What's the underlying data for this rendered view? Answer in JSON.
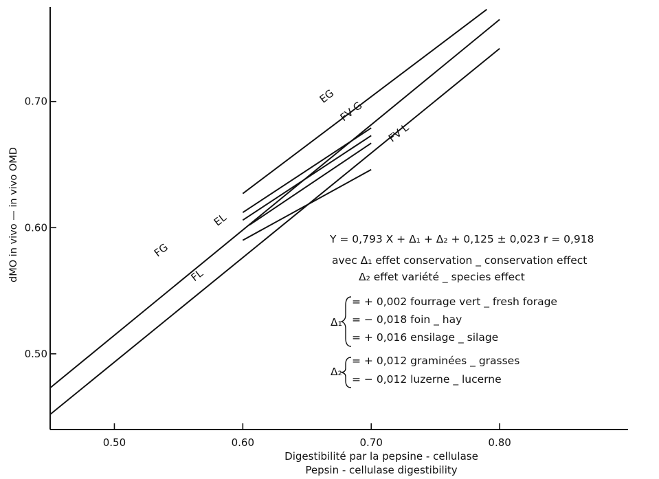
{
  "chart_data": {
    "type": "line",
    "xlabel": [
      "Digestibilité  par  la  pepsine - cellulase",
      "Pepsin - cellulase  digestibility"
    ],
    "ylabel": "dMO  in  vivo  —  in  vivo  OMD",
    "xlim": [
      0.45,
      0.9
    ],
    "ylim": [
      0.44,
      0.775
    ],
    "x_ticks": [
      0.5,
      0.6,
      0.7,
      0.8
    ],
    "x_tick_labels": [
      "0.50",
      "0.60",
      "0.70",
      "0.80"
    ],
    "y_ticks": [
      0.5,
      0.6,
      0.7
    ],
    "y_tick_labels": [
      "0.50",
      "0.60",
      "0.70"
    ],
    "grid": false,
    "legend": "none",
    "series": [
      {
        "name": "EG",
        "x": [
          0.6,
          0.79
        ],
        "y": [
          0.627,
          0.773
        ]
      },
      {
        "name": "FV G",
        "x": [
          0.45,
          0.8
        ],
        "y": [
          0.473,
          0.765
        ]
      },
      {
        "name": "FV L",
        "x": [
          0.45,
          0.8
        ],
        "y": [
          0.452,
          0.742
        ]
      },
      {
        "name": "EL",
        "x": [
          0.6,
          0.7
        ],
        "y": [
          0.612,
          0.679
        ]
      },
      {
        "name": "FG",
        "x": [
          0.6,
          0.7
        ],
        "y": [
          0.606,
          0.673
        ]
      },
      {
        "name": "FL",
        "x": [
          0.6,
          0.7
        ],
        "y": [
          0.59,
          0.646
        ]
      },
      {
        "name": "",
        "x": [
          0.605,
          0.7
        ],
        "y": [
          0.602,
          0.667
        ]
      }
    ],
    "series_labels": [
      {
        "text": "EG",
        "x": 0.667,
        "y": 0.702
      },
      {
        "text": "FV G",
        "x": 0.686,
        "y": 0.69
      },
      {
        "text": "FV L",
        "x": 0.723,
        "y": 0.673
      },
      {
        "text": "EL",
        "x": 0.584,
        "y": 0.604
      },
      {
        "text": "FG",
        "x": 0.538,
        "y": 0.58
      },
      {
        "text": "FL",
        "x": 0.566,
        "y": 0.56
      }
    ],
    "annotations": {
      "equation": "Y = 0,793 X + Δ₁ + Δ₂ + 0,125 ± 0,023     r = 0,918",
      "avec_line1": "avec  Δ₁ effet conservation _ conservation  effect",
      "avec_line2": "Δ₂ effet variété _ species  effect",
      "delta1_symbol": "Δ₁",
      "delta1_items": [
        "= + 0,002   fourrage vert _ fresh  forage",
        "= − 0,018   foin _ hay",
        "= + 0,016   ensilage _ silage"
      ],
      "delta2_symbol": "Δ₂",
      "delta2_items": [
        "= + 0,012   graminées _ grasses",
        "= − 0,012   luzerne _ lucerne"
      ]
    }
  }
}
